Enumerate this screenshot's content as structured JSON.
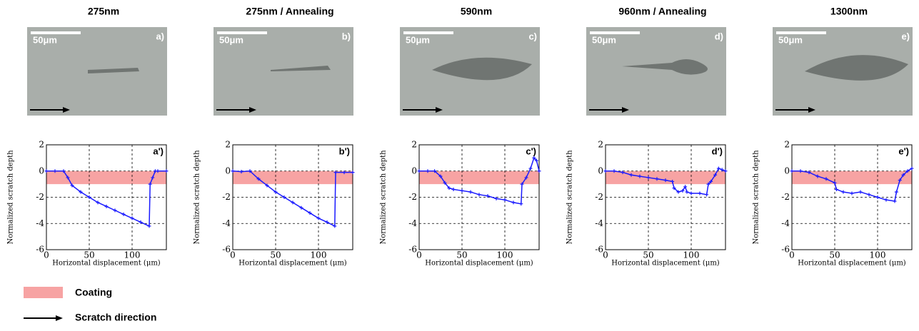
{
  "chart_data": [
    {
      "type": "line",
      "title": "275nm",
      "image_label": "a)",
      "scale_bar_label": "50μm",
      "annotation": "a')",
      "xlabel": "Horizontal displacement (μm)",
      "ylabel": "Normalized scratch depth",
      "xlim": [
        0,
        140
      ],
      "ylim": [
        -6,
        2
      ],
      "xticks": [
        0,
        50,
        100
      ],
      "yticks": [
        -6,
        -4,
        -2,
        0,
        2
      ],
      "grid": true,
      "coating_band": [
        -1,
        0
      ],
      "band_color": "#f7a3a3",
      "color": "#1a1aff",
      "x": [
        0,
        10,
        20,
        25,
        30,
        40,
        50,
        60,
        70,
        80,
        90,
        100,
        110,
        120,
        121,
        124,
        127,
        130,
        140
      ],
      "values": [
        0,
        0,
        0,
        -0.5,
        -1.1,
        -1.6,
        -2.0,
        -2.4,
        -2.7,
        -3.0,
        -3.3,
        -3.6,
        -3.9,
        -4.2,
        -1.0,
        -0.5,
        0,
        0,
        0
      ]
    },
    {
      "type": "line",
      "title": "275nm / Annealing",
      "image_label": "b)",
      "scale_bar_label": "50μm",
      "annotation": "b')",
      "xlabel": "Horizontal displacement (μm)",
      "ylabel": "Normalized scratch depth",
      "xlim": [
        0,
        140
      ],
      "ylim": [
        -6,
        2
      ],
      "xticks": [
        0,
        50,
        100
      ],
      "yticks": [
        -6,
        -4,
        -2,
        0,
        2
      ],
      "grid": true,
      "coating_band": [
        -1,
        0
      ],
      "band_color": "#f7a3a3",
      "color": "#1a1aff",
      "x": [
        0,
        10,
        20,
        30,
        40,
        50,
        60,
        70,
        80,
        90,
        100,
        110,
        119,
        120,
        130,
        140
      ],
      "values": [
        0,
        -0.05,
        0,
        -0.6,
        -1.1,
        -1.6,
        -2.0,
        -2.4,
        -2.8,
        -3.2,
        -3.6,
        -3.9,
        -4.2,
        -0.1,
        -0.1,
        -0.1
      ]
    },
    {
      "type": "line",
      "title": "590nm",
      "image_label": "c)",
      "scale_bar_label": "50μm",
      "annotation": "c')",
      "xlabel": "Horizontal displacement (μm)",
      "ylabel": "Normalized scratch depth",
      "xlim": [
        0,
        140
      ],
      "ylim": [
        -6,
        2
      ],
      "xticks": [
        0,
        50,
        100
      ],
      "yticks": [
        -6,
        -4,
        -2,
        0,
        2
      ],
      "grid": true,
      "coating_band": [
        -1,
        0
      ],
      "band_color": "#f7a3a3",
      "color": "#1a1aff",
      "x": [
        0,
        10,
        18,
        25,
        30,
        35,
        40,
        50,
        60,
        70,
        80,
        90,
        100,
        110,
        119,
        120,
        125,
        130,
        134,
        137,
        140
      ],
      "values": [
        0,
        0,
        0,
        -0.4,
        -0.9,
        -1.3,
        -1.4,
        -1.5,
        -1.6,
        -1.8,
        -1.9,
        -2.1,
        -2.2,
        -2.4,
        -2.5,
        -1.0,
        -0.5,
        0.2,
        1.0,
        0.8,
        0
      ]
    },
    {
      "type": "line",
      "title": "960nm / Annealing",
      "image_label": "d)",
      "scale_bar_label": "50μm",
      "annotation": "d')",
      "xlabel": "Horizontal displacement (μm)",
      "ylabel": "Normalized scratch depth",
      "xlim": [
        0,
        140
      ],
      "ylim": [
        -6,
        2
      ],
      "xticks": [
        0,
        50,
        100
      ],
      "yticks": [
        -6,
        -4,
        -2,
        0,
        2
      ],
      "grid": true,
      "coating_band": [
        -1,
        0
      ],
      "band_color": "#f7a3a3",
      "color": "#1a1aff",
      "x": [
        0,
        10,
        20,
        30,
        40,
        50,
        60,
        70,
        78,
        80,
        85,
        90,
        93,
        95,
        100,
        110,
        118,
        120,
        123,
        128,
        132,
        136,
        140
      ],
      "values": [
        0,
        0,
        -0.1,
        -0.3,
        -0.4,
        -0.5,
        -0.6,
        -0.7,
        -0.8,
        -1.3,
        -1.6,
        -1.5,
        -1.2,
        -1.6,
        -1.7,
        -1.7,
        -1.8,
        -1.0,
        -0.8,
        -0.3,
        0.2,
        0.1,
        0
      ]
    },
    {
      "type": "line",
      "title": "1300nm",
      "image_label": "e)",
      "scale_bar_label": "50μm",
      "annotation": "e')",
      "xlabel": "Horizontal displacement (μm)",
      "ylabel": "Normalized scratch depth",
      "xlim": [
        0,
        140
      ],
      "ylim": [
        -6,
        2
      ],
      "xticks": [
        0,
        50,
        100
      ],
      "yticks": [
        -6,
        -4,
        -2,
        0,
        2
      ],
      "grid": true,
      "coating_band": [
        -1,
        0
      ],
      "band_color": "#f7a3a3",
      "color": "#1a1aff",
      "x": [
        0,
        10,
        20,
        30,
        40,
        50,
        52,
        60,
        70,
        80,
        90,
        100,
        110,
        120,
        122,
        126,
        130,
        135,
        140
      ],
      "values": [
        0,
        0,
        -0.1,
        -0.4,
        -0.6,
        -0.9,
        -1.4,
        -1.6,
        -1.7,
        -1.6,
        -1.8,
        -2.0,
        -2.2,
        -2.3,
        -1.6,
        -0.7,
        -0.3,
        0,
        0.2
      ]
    }
  ],
  "legend": [
    {
      "label": "Coating",
      "color": "#f7a3a3"
    },
    {
      "label": "Scratch direction",
      "color": "#000000"
    }
  ]
}
